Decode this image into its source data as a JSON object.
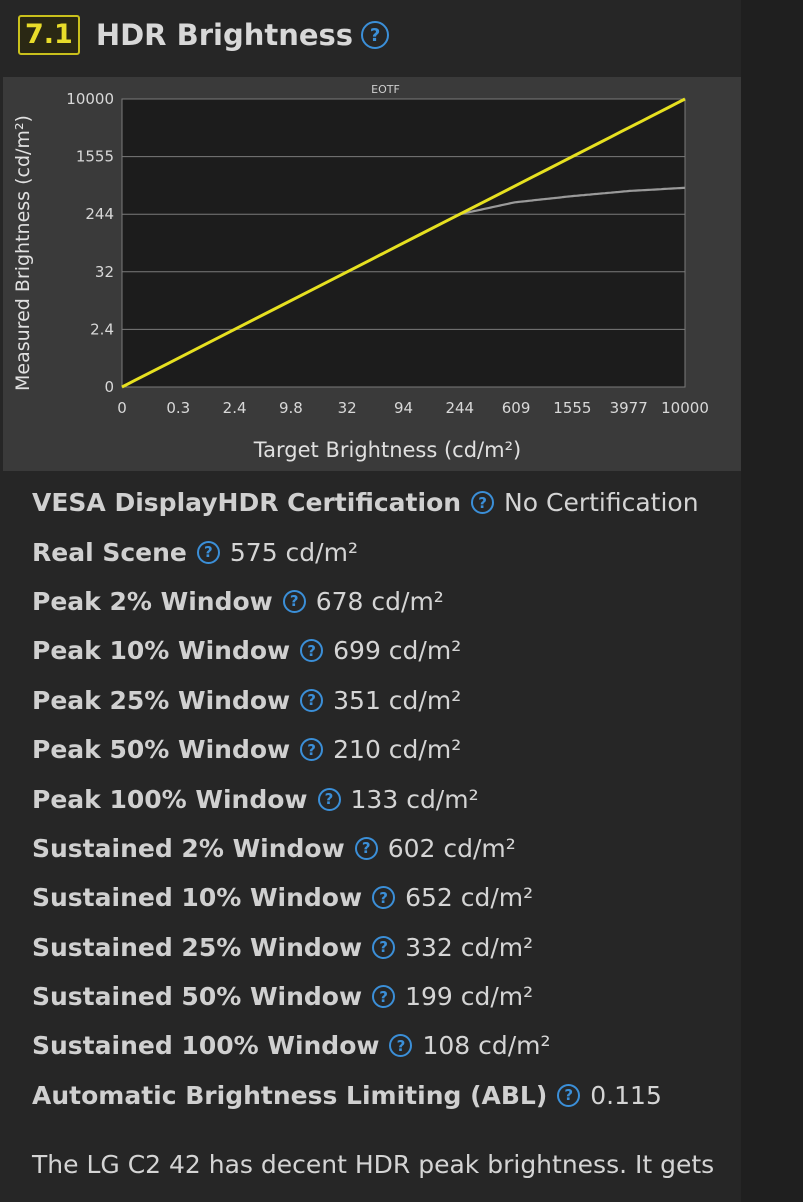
{
  "header": {
    "score": "7.1",
    "title": "HDR Brightness",
    "help_glyph": "?"
  },
  "chart_data": {
    "type": "line",
    "title": "EOTF",
    "xlabel": "Target Brightness (cd/m²)",
    "ylabel": "Measured Brightness (cd/m²)",
    "x_ticks": [
      "0",
      "0.3",
      "2.4",
      "9.8",
      "32",
      "94",
      "244",
      "609",
      "1555",
      "3977",
      "10000"
    ],
    "y_ticks": [
      "0",
      "2.4",
      "32",
      "244",
      "1555",
      "10000"
    ],
    "grid": true,
    "series": [
      {
        "color": "#e6e020",
        "x": [
          "0",
          "10000"
        ],
        "y": [
          "0",
          "10000"
        ]
      },
      {
        "color": "#9a9a9a",
        "x": [
          "0",
          "244",
          "609",
          "1555",
          "3977",
          "10000"
        ],
        "y": [
          "0",
          "244",
          "360",
          "440",
          "520",
          "575"
        ]
      }
    ]
  },
  "specs": [
    {
      "label": "VESA DisplayHDR Certification",
      "value": "No Certification"
    },
    {
      "label": "Real Scene",
      "value": "575 cd/m²"
    },
    {
      "label": "Peak 2% Window",
      "value": "678 cd/m²"
    },
    {
      "label": "Peak 10% Window",
      "value": "699 cd/m²"
    },
    {
      "label": "Peak 25% Window",
      "value": "351 cd/m²"
    },
    {
      "label": "Peak 50% Window",
      "value": "210 cd/m²"
    },
    {
      "label": "Peak 100% Window",
      "value": "133 cd/m²"
    },
    {
      "label": "Sustained 2% Window",
      "value": "602 cd/m²"
    },
    {
      "label": "Sustained 10% Window",
      "value": "652 cd/m²"
    },
    {
      "label": "Sustained 25% Window",
      "value": "332 cd/m²"
    },
    {
      "label": "Sustained 50% Window",
      "value": "199 cd/m²"
    },
    {
      "label": "Sustained 100% Window",
      "value": "108 cd/m²"
    },
    {
      "label": "Automatic Brightness Limiting (ABL)",
      "value": "0.115"
    }
  ],
  "description": "The LG C2 42 has decent HDR peak brightness. It gets"
}
